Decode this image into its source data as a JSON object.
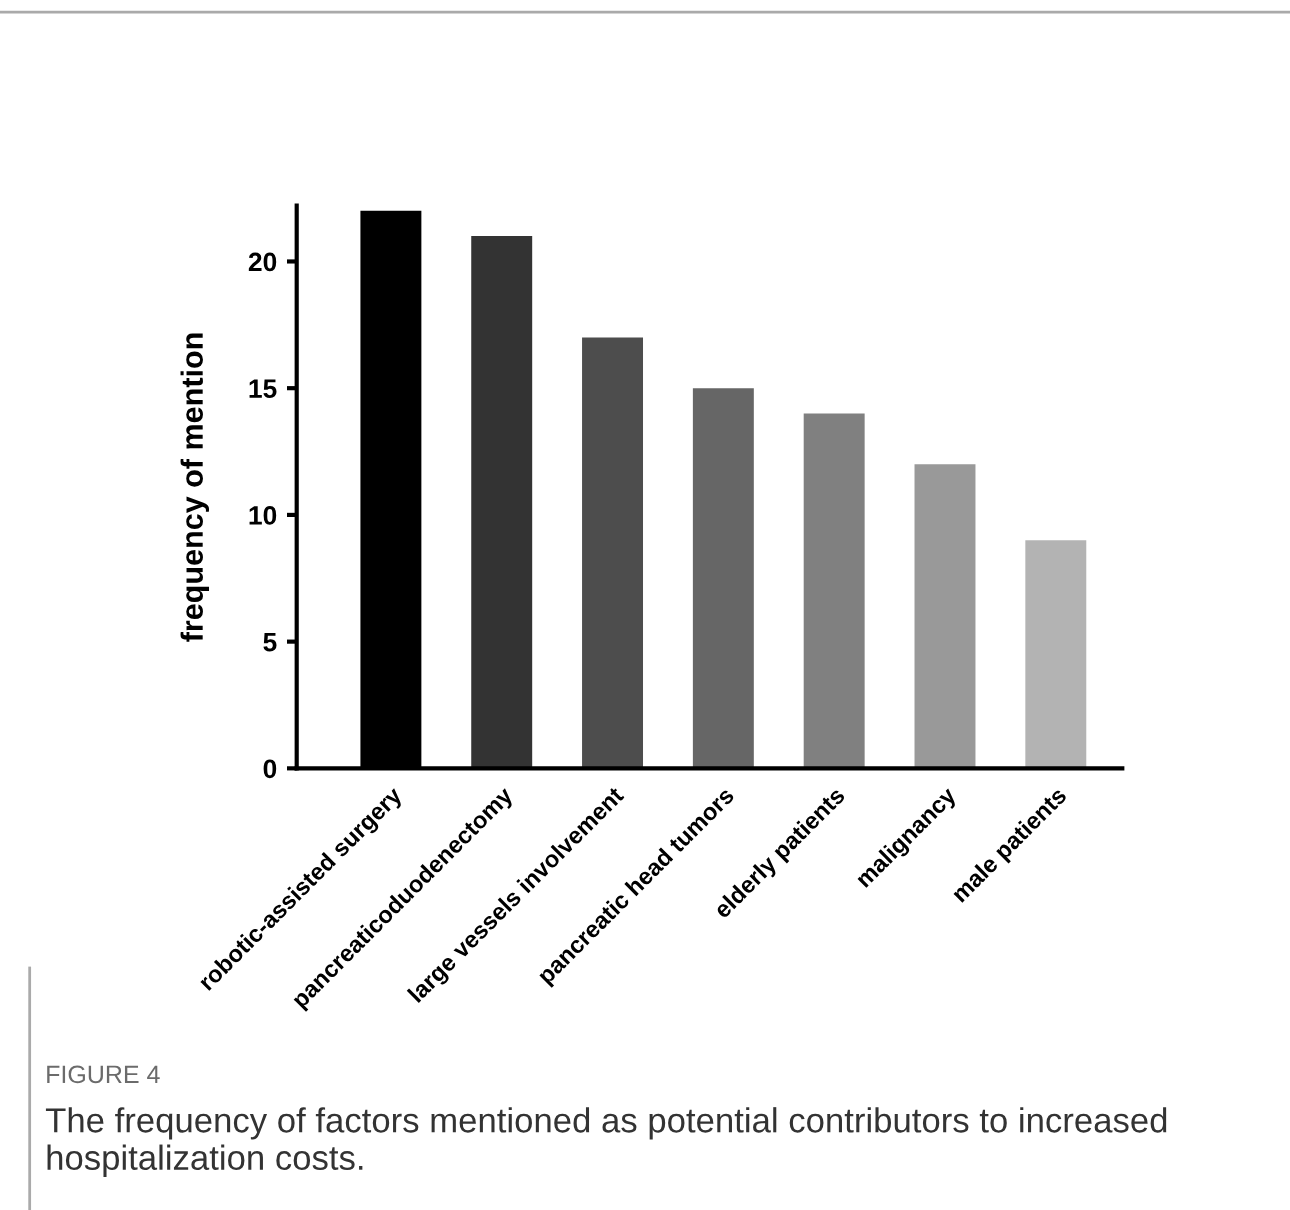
{
  "chart_data": {
    "type": "bar",
    "ylabel": "frequency of mention",
    "categories": [
      "robotic-assisted surgery",
      "pancreaticoduodenectomy",
      "large vessels involvement",
      "pancreatic head tumors",
      "elderly patients",
      "malignancy",
      "male patients"
    ],
    "values": [
      22,
      21,
      17,
      15,
      14,
      12,
      9
    ],
    "colors": [
      "#000000",
      "#333333",
      "#4d4d4d",
      "#666666",
      "#808080",
      "#999999",
      "#b3b3b3"
    ],
    "ylim": [
      0,
      22.2
    ],
    "yticks": [
      0,
      5,
      10,
      15,
      20
    ],
    "grid": false,
    "legend": false,
    "annotations": [
      "FIGURE 4",
      "The frequency of factors mentioned as potential contributors to increased hospitalization costs."
    ]
  }
}
